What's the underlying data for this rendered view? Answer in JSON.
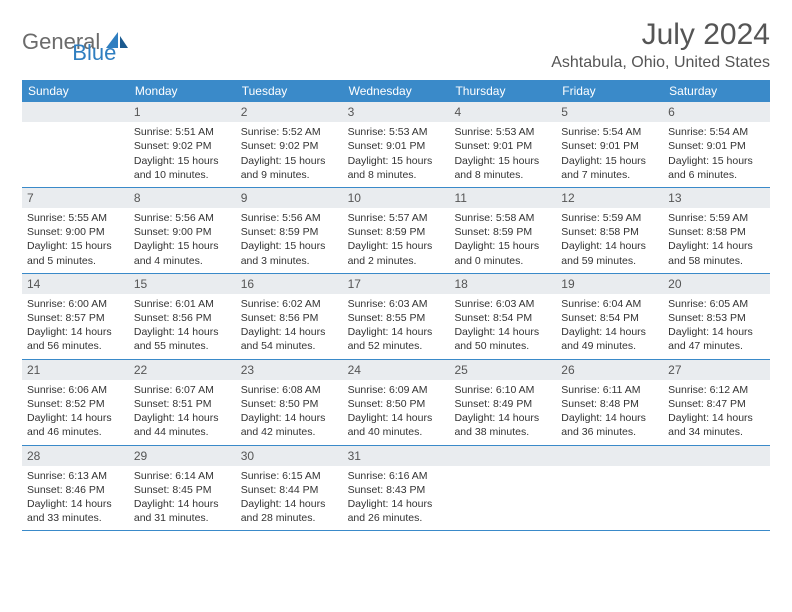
{
  "brand": {
    "text1": "General",
    "text2": "Blue",
    "color1": "#6b6b6b",
    "color2": "#2f7ec0"
  },
  "title": "July 2024",
  "location": "Ashtabula, Ohio, United States",
  "header_bg": "#3a8ac9",
  "daynum_bg": "#e9ecef",
  "weekdays": [
    "Sunday",
    "Monday",
    "Tuesday",
    "Wednesday",
    "Thursday",
    "Friday",
    "Saturday"
  ],
  "weeks": [
    [
      {
        "num": "",
        "lines": []
      },
      {
        "num": "1",
        "lines": [
          "Sunrise: 5:51 AM",
          "Sunset: 9:02 PM",
          "Daylight: 15 hours and 10 minutes."
        ]
      },
      {
        "num": "2",
        "lines": [
          "Sunrise: 5:52 AM",
          "Sunset: 9:02 PM",
          "Daylight: 15 hours and 9 minutes."
        ]
      },
      {
        "num": "3",
        "lines": [
          "Sunrise: 5:53 AM",
          "Sunset: 9:01 PM",
          "Daylight: 15 hours and 8 minutes."
        ]
      },
      {
        "num": "4",
        "lines": [
          "Sunrise: 5:53 AM",
          "Sunset: 9:01 PM",
          "Daylight: 15 hours and 8 minutes."
        ]
      },
      {
        "num": "5",
        "lines": [
          "Sunrise: 5:54 AM",
          "Sunset: 9:01 PM",
          "Daylight: 15 hours and 7 minutes."
        ]
      },
      {
        "num": "6",
        "lines": [
          "Sunrise: 5:54 AM",
          "Sunset: 9:01 PM",
          "Daylight: 15 hours and 6 minutes."
        ]
      }
    ],
    [
      {
        "num": "7",
        "lines": [
          "Sunrise: 5:55 AM",
          "Sunset: 9:00 PM",
          "Daylight: 15 hours and 5 minutes."
        ]
      },
      {
        "num": "8",
        "lines": [
          "Sunrise: 5:56 AM",
          "Sunset: 9:00 PM",
          "Daylight: 15 hours and 4 minutes."
        ]
      },
      {
        "num": "9",
        "lines": [
          "Sunrise: 5:56 AM",
          "Sunset: 8:59 PM",
          "Daylight: 15 hours and 3 minutes."
        ]
      },
      {
        "num": "10",
        "lines": [
          "Sunrise: 5:57 AM",
          "Sunset: 8:59 PM",
          "Daylight: 15 hours and 2 minutes."
        ]
      },
      {
        "num": "11",
        "lines": [
          "Sunrise: 5:58 AM",
          "Sunset: 8:59 PM",
          "Daylight: 15 hours and 0 minutes."
        ]
      },
      {
        "num": "12",
        "lines": [
          "Sunrise: 5:59 AM",
          "Sunset: 8:58 PM",
          "Daylight: 14 hours and 59 minutes."
        ]
      },
      {
        "num": "13",
        "lines": [
          "Sunrise: 5:59 AM",
          "Sunset: 8:58 PM",
          "Daylight: 14 hours and 58 minutes."
        ]
      }
    ],
    [
      {
        "num": "14",
        "lines": [
          "Sunrise: 6:00 AM",
          "Sunset: 8:57 PM",
          "Daylight: 14 hours and 56 minutes."
        ]
      },
      {
        "num": "15",
        "lines": [
          "Sunrise: 6:01 AM",
          "Sunset: 8:56 PM",
          "Daylight: 14 hours and 55 minutes."
        ]
      },
      {
        "num": "16",
        "lines": [
          "Sunrise: 6:02 AM",
          "Sunset: 8:56 PM",
          "Daylight: 14 hours and 54 minutes."
        ]
      },
      {
        "num": "17",
        "lines": [
          "Sunrise: 6:03 AM",
          "Sunset: 8:55 PM",
          "Daylight: 14 hours and 52 minutes."
        ]
      },
      {
        "num": "18",
        "lines": [
          "Sunrise: 6:03 AM",
          "Sunset: 8:54 PM",
          "Daylight: 14 hours and 50 minutes."
        ]
      },
      {
        "num": "19",
        "lines": [
          "Sunrise: 6:04 AM",
          "Sunset: 8:54 PM",
          "Daylight: 14 hours and 49 minutes."
        ]
      },
      {
        "num": "20",
        "lines": [
          "Sunrise: 6:05 AM",
          "Sunset: 8:53 PM",
          "Daylight: 14 hours and 47 minutes."
        ]
      }
    ],
    [
      {
        "num": "21",
        "lines": [
          "Sunrise: 6:06 AM",
          "Sunset: 8:52 PM",
          "Daylight: 14 hours and 46 minutes."
        ]
      },
      {
        "num": "22",
        "lines": [
          "Sunrise: 6:07 AM",
          "Sunset: 8:51 PM",
          "Daylight: 14 hours and 44 minutes."
        ]
      },
      {
        "num": "23",
        "lines": [
          "Sunrise: 6:08 AM",
          "Sunset: 8:50 PM",
          "Daylight: 14 hours and 42 minutes."
        ]
      },
      {
        "num": "24",
        "lines": [
          "Sunrise: 6:09 AM",
          "Sunset: 8:50 PM",
          "Daylight: 14 hours and 40 minutes."
        ]
      },
      {
        "num": "25",
        "lines": [
          "Sunrise: 6:10 AM",
          "Sunset: 8:49 PM",
          "Daylight: 14 hours and 38 minutes."
        ]
      },
      {
        "num": "26",
        "lines": [
          "Sunrise: 6:11 AM",
          "Sunset: 8:48 PM",
          "Daylight: 14 hours and 36 minutes."
        ]
      },
      {
        "num": "27",
        "lines": [
          "Sunrise: 6:12 AM",
          "Sunset: 8:47 PM",
          "Daylight: 14 hours and 34 minutes."
        ]
      }
    ],
    [
      {
        "num": "28",
        "lines": [
          "Sunrise: 6:13 AM",
          "Sunset: 8:46 PM",
          "Daylight: 14 hours and 33 minutes."
        ]
      },
      {
        "num": "29",
        "lines": [
          "Sunrise: 6:14 AM",
          "Sunset: 8:45 PM",
          "Daylight: 14 hours and 31 minutes."
        ]
      },
      {
        "num": "30",
        "lines": [
          "Sunrise: 6:15 AM",
          "Sunset: 8:44 PM",
          "Daylight: 14 hours and 28 minutes."
        ]
      },
      {
        "num": "31",
        "lines": [
          "Sunrise: 6:16 AM",
          "Sunset: 8:43 PM",
          "Daylight: 14 hours and 26 minutes."
        ]
      },
      {
        "num": "",
        "lines": []
      },
      {
        "num": "",
        "lines": []
      },
      {
        "num": "",
        "lines": []
      }
    ]
  ]
}
